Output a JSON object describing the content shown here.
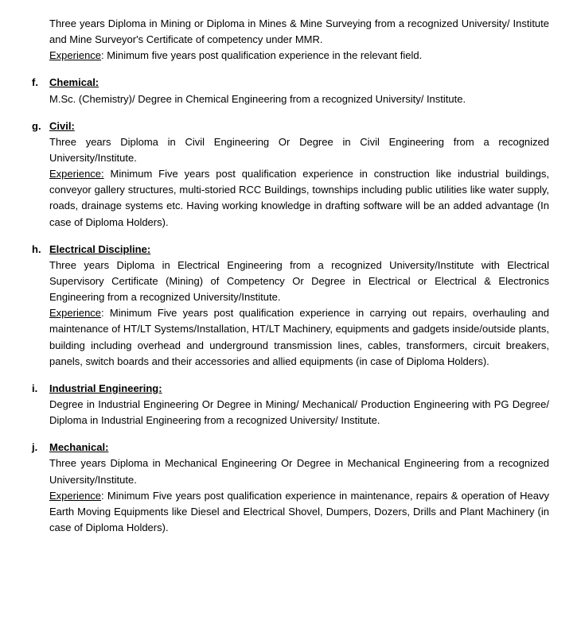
{
  "intro": {
    "qual": "Three years Diploma in Mining or Diploma in Mines & Mine Surveying from a recognized University/ Institute and Mine Surveyor's Certificate of competency under MMR.",
    "exp_label": "Experience",
    "exp_text": ": Minimum five years post qualification experience in the relevant field."
  },
  "sections": {
    "f": {
      "marker": "f.",
      "title": "Chemical:",
      "qual": "M.Sc. (Chemistry)/ Degree in Chemical Engineering from a recognized University/ Institute."
    },
    "g": {
      "marker": "g.",
      "title": "Civil:",
      "qual": "Three years Diploma in Civil Engineering Or Degree in Civil Engineering from a recognized University/Institute.",
      "exp_label": "Experience:",
      "exp_text": " Minimum Five years post qualification experience in construction like industrial buildings, conveyor gallery structures, multi-storied RCC Buildings, townships including public utilities like water supply, roads, drainage systems etc. Having working knowledge in drafting software will be an added advantage (In case of Diploma Holders)."
    },
    "h": {
      "marker": "h.",
      "title": "Electrical Discipline:",
      "qual": "Three years Diploma in Electrical Engineering from a recognized University/Institute with Electrical Supervisory Certificate (Mining) of Competency Or Degree in Electrical or Electrical & Electronics Engineering from a recognized University/Institute.",
      "exp_label": "Experience",
      "exp_text": ": Minimum Five years post qualification experience in carrying out repairs, overhauling and maintenance of HT/LT Systems/Installation, HT/LT Machinery, equipments and gadgets inside/outside plants, building including overhead and underground transmission lines, cables, transformers, circuit breakers, panels, switch boards and their accessories and allied equipments (in case of Diploma Holders)."
    },
    "i": {
      "marker": "i.",
      "title": "Industrial Engineering:",
      "qual": "Degree in Industrial Engineering Or Degree in Mining/ Mechanical/ Production Engineering with PG Degree/ Diploma in Industrial Engineering from a recognized University/ Institute."
    },
    "j": {
      "marker": "j.",
      "title": "Mechanical:",
      "qual": "Three years Diploma in Mechanical Engineering Or Degree in Mechanical Engineering from a recognized University/Institute.",
      "exp_label": "Experience",
      "exp_text": ": Minimum Five years post qualification experience in maintenance, repairs & operation of Heavy Earth Moving Equipments like Diesel and Electrical Shovel, Dumpers, Dozers, Drills and Plant Machinery (in case of Diploma Holders)."
    }
  }
}
